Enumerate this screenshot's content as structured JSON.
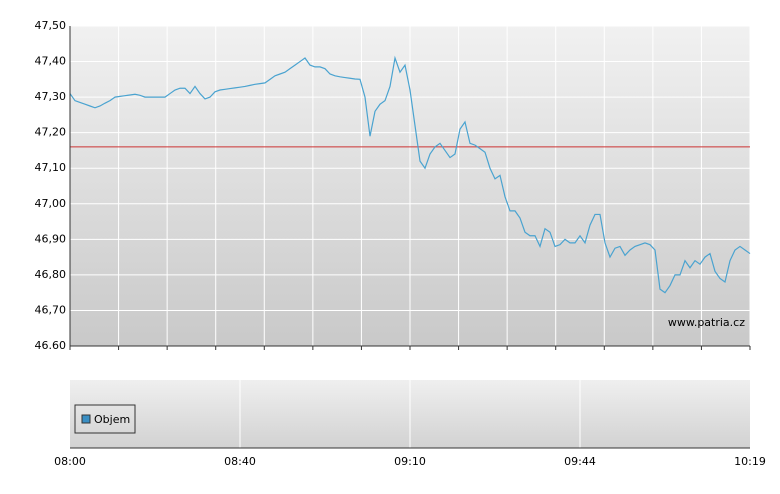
{
  "chart_data": {
    "type": "line",
    "color": "#4aa3d0",
    "values": [
      47.31,
      47.29,
      47.285,
      47.28,
      47.275,
      47.27,
      47.275,
      47.283,
      47.29,
      47.3,
      47.302,
      47.304,
      47.306,
      47.308,
      47.305,
      47.3,
      47.3,
      47.3,
      47.3,
      47.3,
      47.31,
      47.32,
      47.325,
      47.325,
      47.31,
      47.33,
      47.31,
      47.295,
      47.3,
      47.315,
      47.32,
      47.322,
      47.324,
      47.326,
      47.328,
      47.33,
      47.333,
      47.336,
      47.338,
      47.34,
      47.35,
      47.36,
      47.365,
      47.37,
      47.38,
      47.39,
      47.4,
      47.41,
      47.39,
      47.385,
      47.385,
      47.38,
      47.365,
      47.36,
      47.357,
      47.355,
      47.353,
      47.351,
      47.35,
      47.3,
      47.19,
      47.26,
      47.28,
      47.29,
      47.33,
      47.41,
      47.37,
      47.39,
      47.32,
      47.22,
      47.12,
      47.1,
      47.14,
      47.16,
      47.17,
      47.15,
      47.13,
      47.14,
      47.21,
      47.23,
      47.17,
      47.165,
      47.155,
      47.145,
      47.1,
      47.07,
      47.08,
      47.02,
      46.98,
      46.98,
      46.96,
      46.92,
      46.91,
      46.91,
      46.88,
      46.93,
      46.92,
      46.88,
      46.885,
      46.9,
      46.89,
      46.89,
      46.91,
      46.89,
      46.94,
      46.97,
      46.97,
      46.89,
      46.85,
      46.875,
      46.88,
      46.855,
      46.87,
      46.88,
      46.885,
      46.89,
      46.885,
      46.87,
      46.76,
      46.75,
      46.77,
      46.8,
      46.8,
      46.84,
      46.82,
      46.84,
      46.83,
      46.85,
      46.86,
      46.81,
      46.79,
      46.78,
      46.84,
      46.87,
      46.88,
      46.87,
      46.86
    ],
    "ylim": [
      46.6,
      47.5
    ],
    "yticks": [
      {
        "value": 47.5,
        "label": "47,50"
      },
      {
        "value": 47.4,
        "label": "47,40"
      },
      {
        "value": 47.3,
        "label": "47,30"
      },
      {
        "value": 47.2,
        "label": "47,20"
      },
      {
        "value": 47.1,
        "label": "47,10"
      },
      {
        "value": 47.0,
        "label": "47,00"
      },
      {
        "value": 46.9,
        "label": "46,90"
      },
      {
        "value": 46.8,
        "label": "46,80"
      },
      {
        "value": 46.7,
        "label": "46,70"
      },
      {
        "value": 46.6,
        "label": "46.60"
      }
    ],
    "x_tick_labels": [
      "08:00",
      "08:40",
      "09:10",
      "09:44",
      "10:19"
    ],
    "reference_line": {
      "value": 47.16,
      "color": "#cc3333"
    },
    "source": "www.patria.cz",
    "grid": true,
    "volume_panel": {
      "legend": "Objem",
      "color": "#3a8fc4"
    }
  }
}
